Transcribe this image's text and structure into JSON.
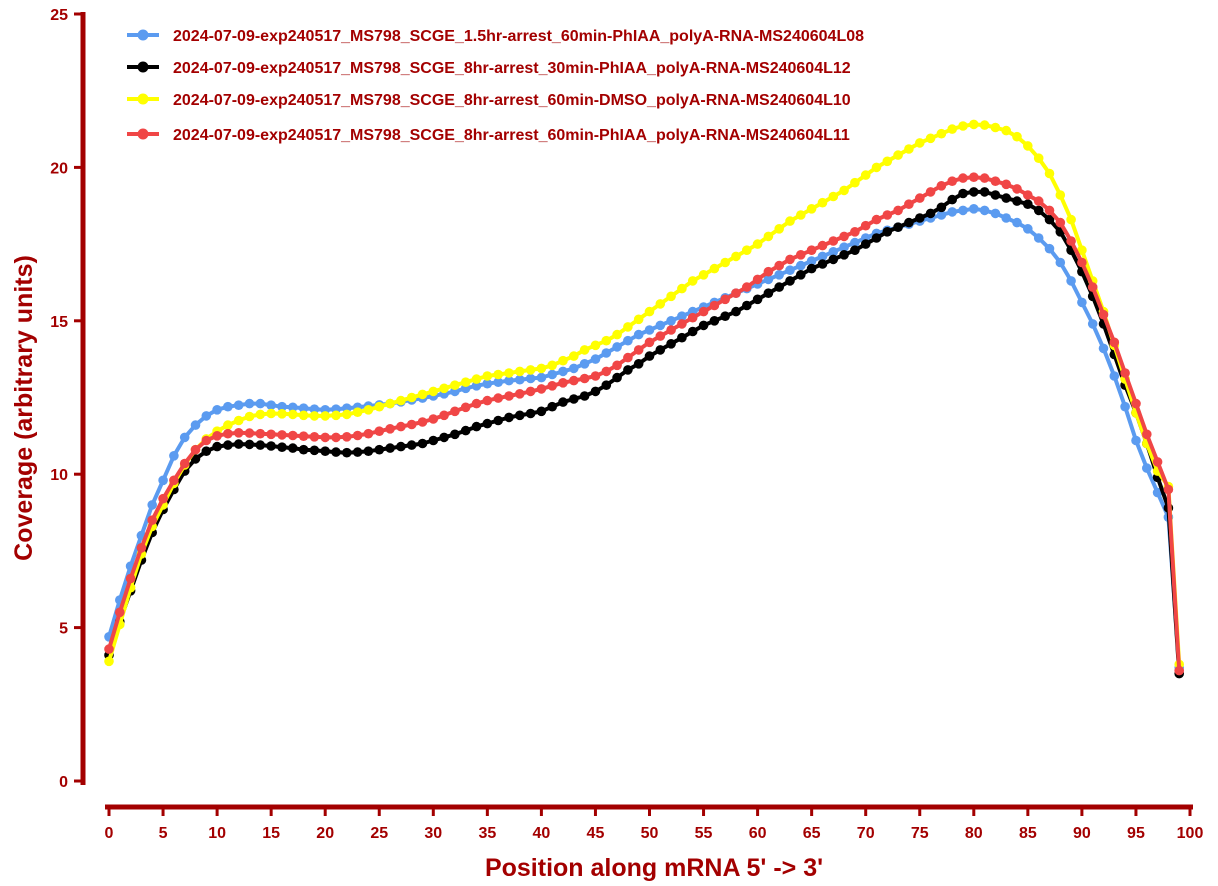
{
  "chart_data": {
    "type": "line",
    "title": "",
    "xlabel": "Position along mRNA 5' -> 3'",
    "ylabel": "Coverage (arbitrary units)",
    "xlim": [
      0,
      100
    ],
    "ylim": [
      0,
      25
    ],
    "xticks": [
      0,
      5,
      10,
      15,
      20,
      25,
      30,
      35,
      40,
      45,
      50,
      55,
      60,
      65,
      70,
      75,
      80,
      85,
      90,
      95,
      100
    ],
    "yticks": [
      0,
      5,
      10,
      15,
      20,
      25
    ],
    "grid": false,
    "legend_position": "top-left",
    "x": [
      0,
      1,
      2,
      3,
      4,
      5,
      6,
      7,
      8,
      9,
      10,
      11,
      12,
      13,
      14,
      15,
      16,
      17,
      18,
      19,
      20,
      21,
      22,
      23,
      24,
      25,
      26,
      27,
      28,
      29,
      30,
      31,
      32,
      33,
      34,
      35,
      36,
      37,
      38,
      39,
      40,
      41,
      42,
      43,
      44,
      45,
      46,
      47,
      48,
      49,
      50,
      51,
      52,
      53,
      54,
      55,
      56,
      57,
      58,
      59,
      60,
      61,
      62,
      63,
      64,
      65,
      66,
      67,
      68,
      69,
      70,
      71,
      72,
      73,
      74,
      75,
      76,
      77,
      78,
      79,
      80,
      81,
      82,
      83,
      84,
      85,
      86,
      87,
      88,
      89,
      90,
      91,
      92,
      93,
      94,
      95,
      96,
      97,
      98,
      99
    ],
    "series": [
      {
        "name": "2024-07-09-exp240517_MS798_SCGE_1.5hr-arrest_60min-PhIAA_polyA-RNA-MS240604L08",
        "color": "#5b9bf0",
        "values": [
          4.7,
          5.9,
          7.0,
          8.0,
          9.0,
          9.8,
          10.6,
          11.2,
          11.6,
          11.9,
          12.1,
          12.2,
          12.25,
          12.3,
          12.3,
          12.25,
          12.2,
          12.18,
          12.15,
          12.12,
          12.1,
          12.12,
          12.15,
          12.18,
          12.22,
          12.26,
          12.3,
          12.36,
          12.42,
          12.48,
          12.55,
          12.62,
          12.7,
          12.8,
          12.88,
          12.95,
          13.0,
          13.05,
          13.08,
          13.12,
          13.15,
          13.25,
          13.35,
          13.45,
          13.6,
          13.75,
          13.95,
          14.15,
          14.35,
          14.55,
          14.7,
          14.85,
          15.0,
          15.15,
          15.3,
          15.45,
          15.6,
          15.75,
          15.9,
          16.05,
          16.2,
          16.35,
          16.5,
          16.65,
          16.8,
          16.95,
          17.1,
          17.25,
          17.4,
          17.55,
          17.7,
          17.85,
          17.95,
          18.05,
          18.15,
          18.25,
          18.35,
          18.45,
          18.55,
          18.6,
          18.65,
          18.6,
          18.5,
          18.35,
          18.2,
          18.0,
          17.7,
          17.35,
          16.9,
          16.3,
          15.6,
          14.9,
          14.1,
          13.2,
          12.2,
          11.1,
          10.2,
          9.4,
          8.6,
          3.7
        ]
      },
      {
        "name": "2024-07-09-exp240517_MS798_SCGE_8hr-arrest_30min-PhIAA_polyA-RNA-MS240604L12",
        "color": "#000000",
        "values": [
          4.1,
          5.2,
          6.2,
          7.2,
          8.1,
          8.85,
          9.5,
          10.1,
          10.5,
          10.75,
          10.9,
          10.95,
          10.98,
          10.97,
          10.95,
          10.92,
          10.88,
          10.85,
          10.8,
          10.78,
          10.75,
          10.72,
          10.7,
          10.72,
          10.75,
          10.8,
          10.85,
          10.9,
          10.95,
          11.0,
          11.1,
          11.2,
          11.3,
          11.42,
          11.55,
          11.65,
          11.75,
          11.85,
          11.92,
          11.98,
          12.05,
          12.2,
          12.35,
          12.45,
          12.55,
          12.7,
          12.9,
          13.15,
          13.4,
          13.6,
          13.85,
          14.05,
          14.25,
          14.45,
          14.65,
          14.85,
          15.0,
          15.15,
          15.3,
          15.5,
          15.7,
          15.9,
          16.1,
          16.3,
          16.5,
          16.7,
          16.85,
          17.0,
          17.15,
          17.3,
          17.5,
          17.7,
          17.9,
          18.05,
          18.2,
          18.35,
          18.5,
          18.7,
          18.95,
          19.15,
          19.2,
          19.2,
          19.1,
          19.0,
          18.9,
          18.8,
          18.6,
          18.3,
          17.9,
          17.3,
          16.6,
          15.8,
          14.9,
          13.9,
          12.9,
          12.0,
          11.0,
          9.9,
          8.9,
          3.5
        ]
      },
      {
        "name": "2024-07-09-exp240517_MS798_SCGE_8hr-arrest_60min-DMSO_polyA-RNA-MS240604L10",
        "color": "#ffff00",
        "values": [
          3.9,
          5.1,
          6.3,
          7.4,
          8.3,
          9.0,
          9.7,
          10.3,
          10.8,
          11.15,
          11.4,
          11.6,
          11.75,
          11.88,
          11.95,
          11.98,
          11.97,
          11.95,
          11.92,
          11.9,
          11.9,
          11.92,
          11.95,
          12.02,
          12.1,
          12.2,
          12.3,
          12.4,
          12.5,
          12.6,
          12.7,
          12.8,
          12.9,
          13.0,
          13.1,
          13.2,
          13.25,
          13.3,
          13.35,
          13.4,
          13.45,
          13.55,
          13.7,
          13.85,
          14.05,
          14.2,
          14.35,
          14.55,
          14.8,
          15.05,
          15.3,
          15.55,
          15.8,
          16.05,
          16.3,
          16.5,
          16.7,
          16.9,
          17.1,
          17.3,
          17.5,
          17.75,
          18.0,
          18.25,
          18.45,
          18.65,
          18.85,
          19.05,
          19.25,
          19.5,
          19.75,
          20.0,
          20.2,
          20.4,
          20.6,
          20.8,
          20.95,
          21.1,
          21.25,
          21.35,
          21.4,
          21.38,
          21.3,
          21.2,
          21.0,
          20.7,
          20.3,
          19.8,
          19.1,
          18.3,
          17.3,
          16.3,
          15.3,
          14.2,
          13.1,
          12.0,
          11.0,
          10.1,
          9.6,
          3.8
        ]
      },
      {
        "name": "2024-07-09-exp240517_MS798_SCGE_8hr-arrest_60min-PhIAA_polyA-RNA-MS240604L11",
        "color": "#f04646",
        "values": [
          4.3,
          5.5,
          6.6,
          7.6,
          8.5,
          9.2,
          9.8,
          10.35,
          10.8,
          11.1,
          11.25,
          11.32,
          11.35,
          11.34,
          11.32,
          11.3,
          11.28,
          11.26,
          11.24,
          11.22,
          11.2,
          11.2,
          11.22,
          11.26,
          11.32,
          11.4,
          11.48,
          11.55,
          11.62,
          11.7,
          11.8,
          11.92,
          12.05,
          12.18,
          12.3,
          12.4,
          12.48,
          12.55,
          12.62,
          12.7,
          12.78,
          12.88,
          12.98,
          13.05,
          13.12,
          13.2,
          13.35,
          13.55,
          13.8,
          14.05,
          14.3,
          14.5,
          14.7,
          14.9,
          15.1,
          15.3,
          15.5,
          15.7,
          15.9,
          16.1,
          16.35,
          16.6,
          16.8,
          17.0,
          17.15,
          17.3,
          17.45,
          17.6,
          17.75,
          17.9,
          18.1,
          18.3,
          18.45,
          18.6,
          18.8,
          19.0,
          19.2,
          19.4,
          19.55,
          19.65,
          19.68,
          19.65,
          19.55,
          19.45,
          19.3,
          19.1,
          18.9,
          18.6,
          18.2,
          17.6,
          16.9,
          16.1,
          15.2,
          14.3,
          13.3,
          12.3,
          11.3,
          10.4,
          9.5,
          3.6
        ]
      }
    ]
  }
}
